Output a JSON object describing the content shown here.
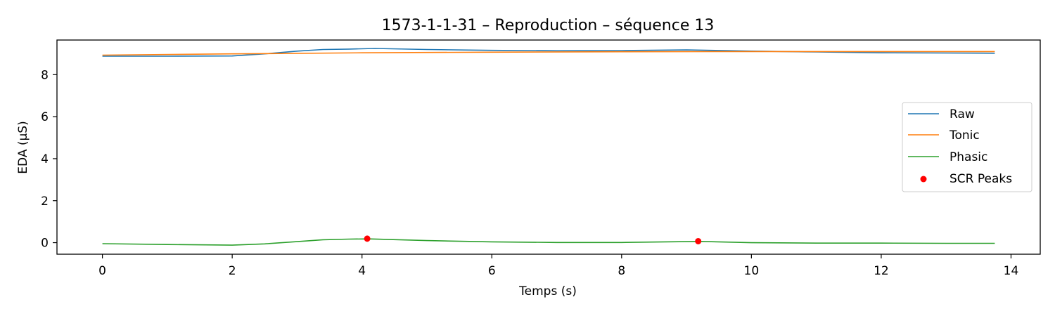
{
  "chart_data": {
    "type": "line",
    "title": "1573-1-1-31 – Reproduction – séquence 13",
    "xlabel": "Temps (s)",
    "ylabel": "EDA (µS)",
    "xlim": [
      -0.7,
      14.45
    ],
    "ylim": [
      -0.55,
      9.65
    ],
    "xticks": [
      0,
      2,
      4,
      6,
      8,
      10,
      12,
      14
    ],
    "yticks": [
      0,
      2,
      4,
      6,
      8
    ],
    "grid": false,
    "legend_position": "center-right",
    "series": [
      {
        "name": "Raw",
        "color": "#1f77b4",
        "x": [
          0,
          1,
          2,
          2.5,
          3,
          3.4,
          3.8,
          4.2,
          5,
          6,
          7,
          8,
          9,
          10,
          11,
          12,
          13,
          13.75
        ],
        "y": [
          8.88,
          8.88,
          8.89,
          8.99,
          9.12,
          9.2,
          9.22,
          9.25,
          9.2,
          9.16,
          9.14,
          9.15,
          9.18,
          9.12,
          9.08,
          9.04,
          9.03,
          9.02
        ]
      },
      {
        "name": "Tonic",
        "color": "#ff7f0e",
        "x": [
          0,
          2,
          4,
          6,
          8,
          10,
          12,
          13.75
        ],
        "y": [
          8.93,
          8.99,
          9.04,
          9.07,
          9.09,
          9.1,
          9.1,
          9.1
        ]
      },
      {
        "name": "Phasic",
        "color": "#2ca02c",
        "x": [
          0,
          1,
          2,
          2.5,
          3,
          3.4,
          3.8,
          4.1,
          5,
          6,
          7,
          8,
          9.2,
          10,
          11,
          12,
          13,
          13.75
        ],
        "y": [
          -0.05,
          -0.09,
          -0.12,
          -0.06,
          0.05,
          0.14,
          0.17,
          0.18,
          0.1,
          0.04,
          0.01,
          0.01,
          0.06,
          0.0,
          -0.02,
          -0.02,
          -0.03,
          -0.03
        ]
      }
    ],
    "scatter": {
      "name": "SCR Peaks",
      "color": "#ff0000",
      "x": [
        4.08,
        9.18
      ],
      "y": [
        0.19,
        0.07
      ]
    }
  }
}
